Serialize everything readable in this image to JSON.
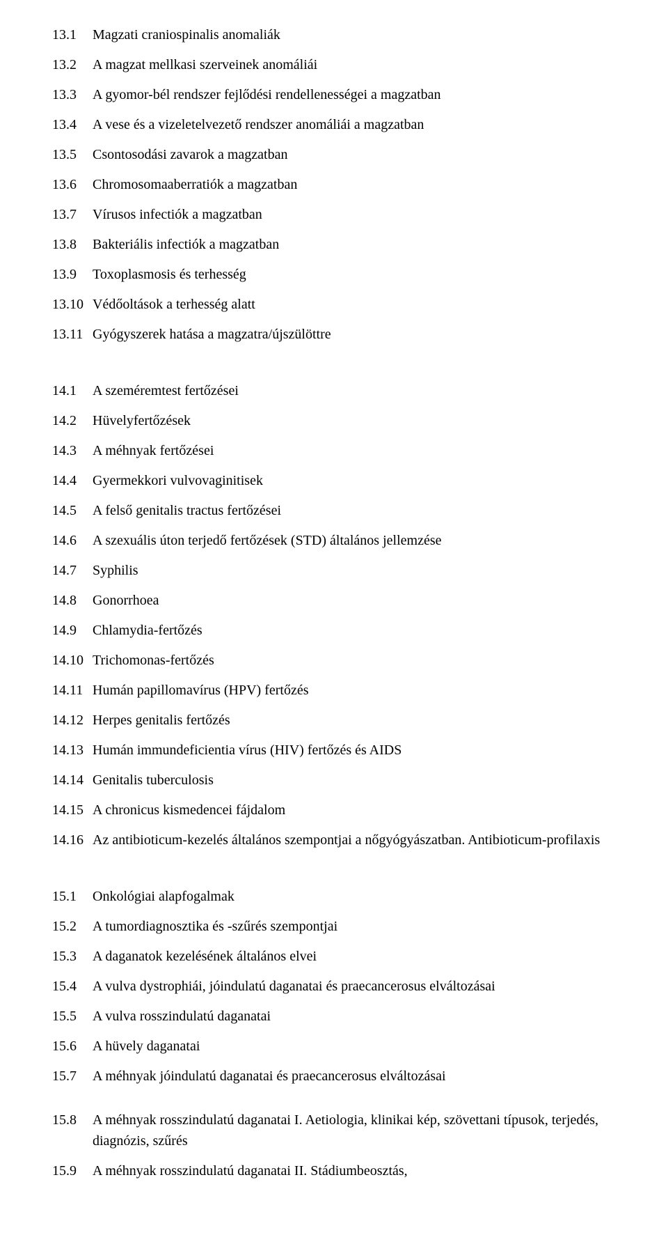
{
  "font": {
    "family": "Times New Roman",
    "size_pt": 15,
    "color": "#000000",
    "background": "#ffffff"
  },
  "sections": [
    {
      "items": [
        {
          "num": "13.1",
          "text": "Magzati craniospinalis anomaliák"
        },
        {
          "num": "13.2",
          "text": "A magzat mellkasi szerveinek anomáliái"
        },
        {
          "num": "13.3",
          "text": "A gyomor-bél rendszer fejlődési rendellenességei a magzatban"
        },
        {
          "num": "13.4",
          "text": "A vese és a vizeletelvezető rendszer anomáliái a magzatban"
        },
        {
          "num": "13.5",
          "text": "Csontosodási zavarok a magzatban"
        },
        {
          "num": "13.6",
          "text": "Chromosomaaberratiók a magzatban"
        },
        {
          "num": "13.7",
          "text": "Vírusos infectiók a magzatban"
        },
        {
          "num": "13.8",
          "text": "Bakteriális infectiók a magzatban"
        },
        {
          "num": "13.9",
          "text": "Toxoplasmosis és terhesség"
        },
        {
          "num": "13.10",
          "text": "Védőoltások a terhesség alatt"
        },
        {
          "num": "13.11",
          "text": "Gyógyszerek hatása a magzatra/újszülöttre"
        }
      ]
    },
    {
      "items": [
        {
          "num": "14.1",
          "text": "A szeméremtest fertőzései"
        },
        {
          "num": "14.2",
          "text": "Hüvelyfertőzések"
        },
        {
          "num": "14.3",
          "text": "A méhnyak fertőzései"
        },
        {
          "num": "14.4",
          "text": "Gyermekkori vulvovaginitisek"
        },
        {
          "num": "14.5",
          "text": "A felső genitalis tractus fertőzései"
        },
        {
          "num": "14.6",
          "text": "A szexuális úton terjedő fertőzések (STD) általános jellemzése"
        },
        {
          "num": "14.7",
          "text": "Syphilis"
        },
        {
          "num": "14.8",
          "text": "Gonorrhoea"
        },
        {
          "num": "14.9",
          "text": "Chlamydia-fertőzés"
        },
        {
          "num": "14.10",
          "text": "Trichomonas-fertőzés"
        },
        {
          "num": "14.11",
          "text": "Humán papillomavírus (HPV) fertőzés"
        },
        {
          "num": "14.12",
          "text": "Herpes genitalis fertőzés"
        },
        {
          "num": "14.13",
          "text": "Humán immundeficientia vírus (HIV) fertőzés és AIDS"
        },
        {
          "num": "14.14",
          "text": "Genitalis tuberculosis"
        },
        {
          "num": "14.15",
          "text": "A chronicus kismedencei fájdalom"
        },
        {
          "num": "14.16",
          "text": "Az antibioticum-kezelés általános szempontjai a nőgyógyászatban. Antibioticum-profilaxis"
        }
      ]
    },
    {
      "items": [
        {
          "num": "15.1",
          "text": "Onkológiai alapfogalmak"
        },
        {
          "num": "15.2",
          "text": "A tumordiagnosztika és -szűrés szempontjai"
        },
        {
          "num": "15.3",
          "text": "A daganatok kezelésének általános elvei"
        },
        {
          "num": "15.4",
          "text": "A vulva dystrophiái, jóindulatú daganatai és praecancerosus elváltozásai"
        },
        {
          "num": "15.5",
          "text": "A vulva rosszindulatú daganatai"
        },
        {
          "num": "15.6",
          "text": "A hüvely daganatai"
        },
        {
          "num": "15.7",
          "text": "A méhnyak jóindulatú daganatai és praecancerosus elváltozásai"
        }
      ]
    },
    {
      "items": [
        {
          "num": "15.8",
          "text": "A méhnyak rosszindulatú daganatai I. Aetiologia, klinikai kép, szövettani típusok, terjedés, diagnózis, szűrés"
        },
        {
          "num": "15.9",
          "text": "A méhnyak rosszindulatú daganatai II. Stádiumbeosztás,"
        }
      ]
    }
  ]
}
